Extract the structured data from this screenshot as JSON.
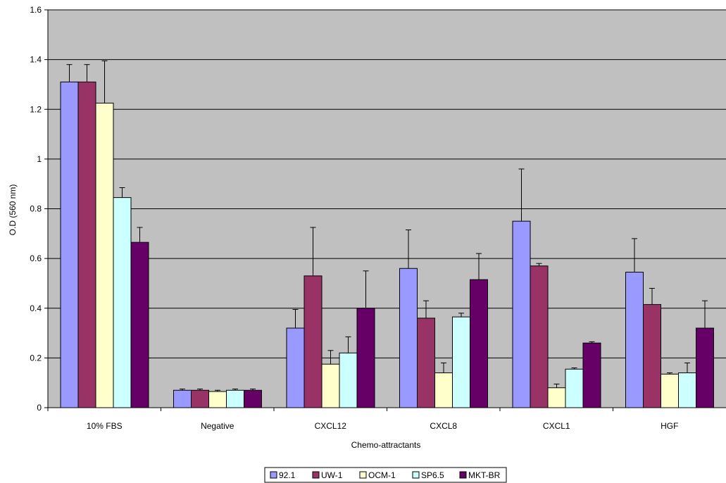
{
  "chart_data": {
    "type": "bar",
    "title": "",
    "xlabel": "Chemo-attractants",
    "ylabel": "O.D (560 nm)",
    "ylim": [
      0,
      1.6
    ],
    "yticks": [
      0,
      0.2,
      0.4,
      0.6,
      0.8,
      1,
      1.2,
      1.4,
      1.6
    ],
    "ytick_labels": [
      "0",
      "0.2",
      "0.4",
      "0.6",
      "0.8",
      "1",
      "1.2",
      "1.4",
      "1.6"
    ],
    "grid": true,
    "legend_position": "bottom",
    "categories": [
      "10% FBS",
      "Negative",
      "CXCL12",
      "CXCL8",
      "CXCL1",
      "HGF"
    ],
    "series": [
      {
        "name": "92.1",
        "color": "#9999ff",
        "values": [
          1.31,
          0.07,
          0.32,
          0.56,
          0.75,
          0.545
        ],
        "errors": [
          0.07,
          0.005,
          0.075,
          0.155,
          0.21,
          0.135
        ]
      },
      {
        "name": "UW-1",
        "color": "#993366",
        "values": [
          1.31,
          0.07,
          0.53,
          0.36,
          0.57,
          0.415
        ],
        "errors": [
          0.07,
          0.005,
          0.195,
          0.07,
          0.01,
          0.065
        ]
      },
      {
        "name": "OCM-1",
        "color": "#ffffcc",
        "values": [
          1.225,
          0.065,
          0.175,
          0.14,
          0.08,
          0.135
        ],
        "errors": [
          0.17,
          0.005,
          0.055,
          0.04,
          0.015,
          0.005
        ]
      },
      {
        "name": "SP6.5",
        "color": "#ccffff",
        "values": [
          0.845,
          0.07,
          0.22,
          0.365,
          0.155,
          0.14
        ],
        "errors": [
          0.04,
          0.005,
          0.065,
          0.015,
          0.005,
          0.04
        ]
      },
      {
        "name": "MKT-BR",
        "color": "#660066",
        "values": [
          0.665,
          0.07,
          0.4,
          0.515,
          0.26,
          0.32
        ],
        "errors": [
          0.06,
          0.005,
          0.15,
          0.105,
          0.005,
          0.11
        ]
      }
    ]
  },
  "colors": {
    "plot_background": "#c0c0c0",
    "gridline": "#000000",
    "axis": "#000000"
  }
}
